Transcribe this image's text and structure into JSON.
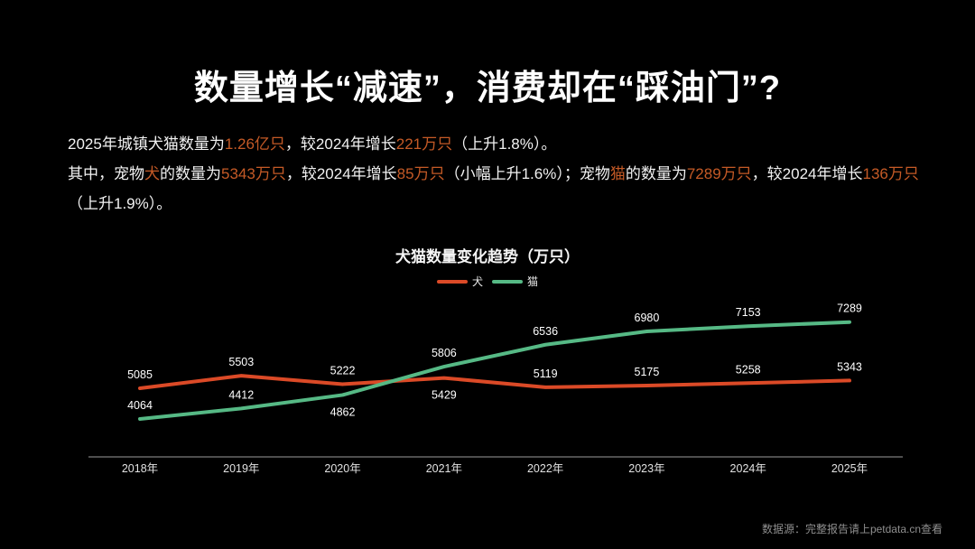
{
  "page": {
    "background": "#000000",
    "text_color": "#ffffff",
    "highlight_color": "#C55A26"
  },
  "title": "数量增长“减速”，消费却在“踩油门”?",
  "intro": {
    "paragraphs": [
      {
        "segments": [
          {
            "t": "2025年城镇犬猫数量为"
          },
          {
            "t": "1.26亿只",
            "hl": true
          },
          {
            "t": "，较2024年增长"
          },
          {
            "t": "221万只",
            "hl": true
          },
          {
            "t": "（上升1.8%）。"
          }
        ]
      },
      {
        "segments": [
          {
            "t": "其中，宠物"
          },
          {
            "t": "犬",
            "hl": true
          },
          {
            "t": "的数量为"
          },
          {
            "t": "5343万只",
            "hl": true
          },
          {
            "t": "，较2024年增长"
          },
          {
            "t": "85万只",
            "hl": true
          },
          {
            "t": "（小幅上升1.6%）；宠物"
          },
          {
            "t": "猫",
            "hl": true
          },
          {
            "t": "的数量为"
          },
          {
            "t": "7289万只",
            "hl": true
          },
          {
            "t": "，较2024年增长"
          },
          {
            "t": "136万只",
            "hl": true
          },
          {
            "t": "（上升1.9%）。"
          }
        ]
      }
    ]
  },
  "chart_data": {
    "type": "line",
    "title": "犬猫数量变化趋势（万只）",
    "categories": [
      "2018年",
      "2019年",
      "2020年",
      "2021年",
      "2022年",
      "2023年",
      "2024年",
      "2025年"
    ],
    "series": [
      {
        "name": "犬",
        "color": "#DB4A27",
        "values": [
          5085,
          5503,
          5222,
          5429,
          5119,
          5175,
          5258,
          5343
        ],
        "labels_below_indices": [
          3
        ]
      },
      {
        "name": "猫",
        "color": "#56B985",
        "values": [
          4064,
          4412,
          4862,
          5806,
          6536,
          6980,
          7153,
          7289
        ],
        "labels_below_indices": [
          2
        ]
      }
    ],
    "ylim": [
      2800,
      7900
    ],
    "grid": false,
    "legend_position": "top-center",
    "axis_color": "#9C9C9C",
    "data_label_color": "#FFFFFF"
  },
  "footer": {
    "source": "数据源：完整报告请上petdata.cn查看"
  }
}
